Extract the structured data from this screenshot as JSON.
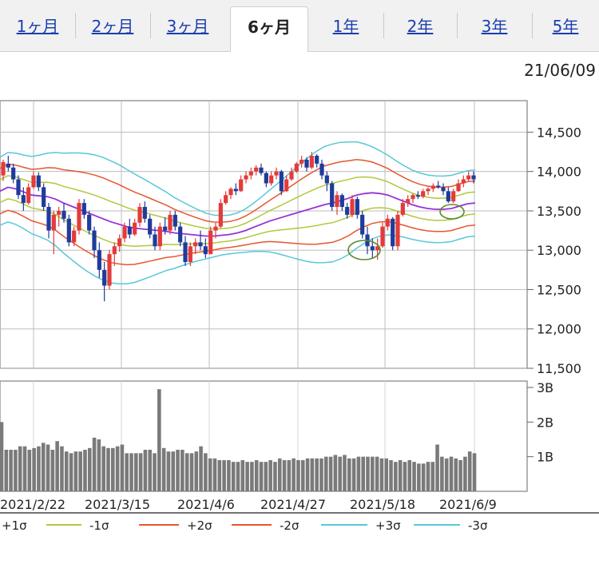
{
  "tabs": [
    {
      "label": "1ヶ月",
      "active": false
    },
    {
      "label": "2ヶ月",
      "active": false
    },
    {
      "label": "3ヶ月",
      "active": false
    },
    {
      "label": "6ヶ月",
      "active": true
    },
    {
      "label": "1年",
      "active": false
    },
    {
      "label": "2年",
      "active": false
    },
    {
      "label": "3年",
      "active": false
    },
    {
      "label": "5年",
      "active": false
    }
  ],
  "date_stamp": "21/06/09",
  "chart_data": [
    {
      "type": "candlestick",
      "ylim": [
        11500,
        14900
      ],
      "ytick_labels": [
        "14,500",
        "14,000",
        "13,500",
        "13,000",
        "12,500",
        "12,000",
        "11,500"
      ],
      "ytick_values": [
        14500,
        14000,
        13500,
        13000,
        12500,
        12000,
        11500
      ],
      "colors": {
        "up": "#e33b3b",
        "down": "#1f3b9c",
        "sma": "#9a30d8",
        "sigma1": "#b0c83c",
        "sigma2": "#e8552e",
        "sigma3": "#58c8d8"
      },
      "grid": true,
      "candles": [
        [
          13950,
          14150,
          13880,
          14120
        ],
        [
          14100,
          14200,
          14000,
          14050
        ],
        [
          14050,
          14100,
          13850,
          13900
        ],
        [
          13900,
          13950,
          13650,
          13700
        ],
        [
          13700,
          13800,
          13500,
          13600
        ],
        [
          13600,
          13850,
          13580,
          13800
        ],
        [
          13800,
          14000,
          13780,
          13950
        ],
        [
          13950,
          13990,
          13750,
          13800
        ],
        [
          13800,
          13850,
          13500,
          13550
        ],
        [
          13550,
          13600,
          13150,
          13250
        ],
        [
          13250,
          13500,
          12950,
          13450
        ],
        [
          13450,
          13550,
          13300,
          13500
        ],
        [
          13500,
          13600,
          13350,
          13400
        ],
        [
          13400,
          13450,
          13050,
          13100
        ],
        [
          13100,
          13300,
          13050,
          13250
        ],
        [
          13250,
          13650,
          13200,
          13600
        ],
        [
          13600,
          13650,
          13400,
          13450
        ],
        [
          13450,
          13500,
          13200,
          13250
        ],
        [
          13250,
          13300,
          12900,
          13000
        ],
        [
          13000,
          13100,
          12650,
          12750
        ],
        [
          12750,
          12850,
          12350,
          12550
        ],
        [
          12550,
          13000,
          12500,
          12950
        ],
        [
          12950,
          13100,
          12800,
          13050
        ],
        [
          13050,
          13200,
          12980,
          13150
        ],
        [
          13150,
          13350,
          13100,
          13300
        ],
        [
          13300,
          13400,
          13150,
          13200
        ],
        [
          13200,
          13400,
          13180,
          13350
        ],
        [
          13350,
          13600,
          13300,
          13550
        ],
        [
          13550,
          13620,
          13350,
          13400
        ],
        [
          13400,
          13450,
          13150,
          13200
        ],
        [
          13200,
          13300,
          13000,
          13050
        ],
        [
          13050,
          13350,
          13000,
          13300
        ],
        [
          13300,
          13420,
          13200,
          13250
        ],
        [
          13250,
          13500,
          13200,
          13450
        ],
        [
          13450,
          13500,
          13250,
          13300
        ],
        [
          13300,
          13350,
          13050,
          13100
        ],
        [
          13100,
          13180,
          12800,
          12850
        ],
        [
          12850,
          13100,
          12800,
          13050
        ],
        [
          13050,
          13150,
          12950,
          13100
        ],
        [
          13100,
          13250,
          13000,
          13050
        ],
        [
          13050,
          13150,
          12900,
          12950
        ],
        [
          12950,
          13300,
          12950,
          13250
        ],
        [
          13250,
          13350,
          13150,
          13300
        ],
        [
          13300,
          13650,
          13280,
          13600
        ],
        [
          13600,
          13750,
          13580,
          13700
        ],
        [
          13700,
          13800,
          13650,
          13780
        ],
        [
          13780,
          13850,
          13700,
          13750
        ],
        [
          13750,
          13950,
          13740,
          13900
        ],
        [
          13900,
          14000,
          13850,
          13950
        ],
        [
          13950,
          14050,
          13900,
          14000
        ],
        [
          14000,
          14080,
          13950,
          14050
        ],
        [
          14050,
          14100,
          13950,
          13980
        ],
        [
          13980,
          14000,
          13800,
          13850
        ],
        [
          13850,
          14000,
          13820,
          13950
        ],
        [
          13950,
          14050,
          13900,
          14000
        ],
        [
          14000,
          14020,
          13700,
          13750
        ],
        [
          13750,
          13950,
          13740,
          13900
        ],
        [
          13900,
          14050,
          13880,
          14000
        ],
        [
          14000,
          14120,
          13980,
          14100
        ],
        [
          14100,
          14200,
          14050,
          14150
        ],
        [
          14150,
          14180,
          14000,
          14050
        ],
        [
          14050,
          14250,
          14030,
          14200
        ],
        [
          14200,
          14220,
          14050,
          14100
        ],
        [
          14100,
          14150,
          13900,
          13950
        ],
        [
          13950,
          14000,
          13750,
          13850
        ],
        [
          13850,
          13880,
          13500,
          13550
        ],
        [
          13550,
          13750,
          13450,
          13700
        ],
        [
          13700,
          13720,
          13500,
          13550
        ],
        [
          13550,
          13600,
          13400,
          13450
        ],
        [
          13450,
          13700,
          13420,
          13650
        ],
        [
          13650,
          13680,
          13400,
          13450
        ],
        [
          13450,
          13500,
          13150,
          13200
        ],
        [
          13200,
          13300,
          12950,
          13050
        ],
        [
          13050,
          13150,
          12900,
          13000
        ],
        [
          13000,
          13150,
          12880,
          13050
        ],
        [
          13050,
          13350,
          13030,
          13300
        ],
        [
          13300,
          13450,
          13250,
          13400
        ],
        [
          13400,
          13420,
          13000,
          13050
        ],
        [
          13050,
          13500,
          13000,
          13450
        ],
        [
          13450,
          13650,
          13430,
          13600
        ],
        [
          13600,
          13700,
          13550,
          13650
        ],
        [
          13650,
          13720,
          13600,
          13700
        ],
        [
          13700,
          13750,
          13650,
          13680
        ],
        [
          13680,
          13780,
          13660,
          13750
        ],
        [
          13750,
          13800,
          13700,
          13780
        ],
        [
          13780,
          13850,
          13740,
          13820
        ],
        [
          13820,
          13880,
          13780,
          13800
        ],
        [
          13800,
          13850,
          13700,
          13750
        ],
        [
          13750,
          13800,
          13600,
          13620
        ],
        [
          13620,
          13780,
          13600,
          13750
        ],
        [
          13750,
          13900,
          13740,
          13850
        ],
        [
          13850,
          13950,
          13800,
          13900
        ],
        [
          13900,
          14000,
          13880,
          13950
        ],
        [
          13950,
          14000,
          13850,
          13900
        ]
      ],
      "sma": [
        13750,
        13800,
        13780,
        13740,
        13700,
        13690,
        13680,
        13650,
        13600,
        13560,
        13520,
        13480,
        13440,
        13400,
        13360,
        13330,
        13300,
        13280,
        13270,
        13260,
        13250,
        13240,
        13220,
        13210,
        13200,
        13190,
        13180,
        13180,
        13190,
        13200,
        13220,
        13250,
        13290,
        13330,
        13370,
        13400,
        13430,
        13460,
        13490,
        13520,
        13550,
        13580,
        13600,
        13630,
        13660,
        13700,
        13720,
        13730,
        13720,
        13700,
        13660,
        13620,
        13580,
        13550,
        13530,
        13520,
        13520,
        13530,
        13560,
        13590,
        13600
      ],
      "legend": [
        "+1σ",
        "-1σ",
        "+2σ",
        "-2σ",
        "+3σ",
        "-3σ"
      ],
      "xtick_labels": [
        "2021/2/22",
        "2021/3/15",
        "2021/4/6",
        "2021/4/27",
        "2021/5/18",
        "2021/6/9"
      ]
    },
    {
      "type": "bar",
      "ylim": [
        0,
        3.0
      ],
      "ytick_labels": [
        "3B",
        "2B",
        "1B"
      ],
      "ytick_values": [
        3,
        2,
        1
      ],
      "values": [
        2.0,
        1.2,
        1.2,
        1.2,
        1.3,
        1.3,
        1.2,
        1.25,
        1.3,
        1.4,
        1.35,
        1.2,
        1.45,
        1.3,
        1.15,
        1.1,
        1.15,
        1.15,
        1.2,
        1.25,
        1.55,
        1.5,
        1.3,
        1.25,
        1.25,
        1.3,
        1.35,
        1.1,
        1.1,
        1.1,
        1.1,
        1.2,
        1.2,
        1.1,
        2.95,
        1.25,
        1.15,
        1.15,
        1.2,
        1.2,
        1.1,
        1.1,
        1.15,
        1.3,
        1.1,
        0.95,
        0.95,
        0.9,
        0.9,
        0.9,
        0.85,
        0.85,
        0.9,
        0.85,
        0.85,
        0.9,
        0.85,
        0.85,
        0.9,
        0.85,
        0.95,
        0.9,
        0.9,
        0.95,
        0.9,
        0.9,
        0.95,
        0.95,
        0.95,
        0.95,
        1.0,
        1.0,
        1.05,
        1.0,
        1.05,
        0.95,
        0.95,
        1.0,
        1.0,
        1.0,
        1.0,
        1.0,
        0.95,
        0.95,
        0.9,
        0.85,
        0.9,
        0.85,
        0.9,
        0.85,
        0.8,
        0.8,
        0.85,
        0.85,
        1.35,
        1.0,
        0.95,
        1.0,
        0.95,
        0.9,
        1.0,
        1.15,
        1.1
      ]
    }
  ]
}
